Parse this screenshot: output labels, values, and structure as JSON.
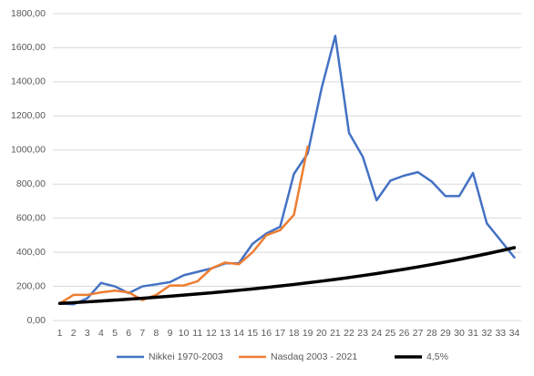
{
  "chart_data": {
    "type": "line",
    "categories": [
      "1",
      "2",
      "3",
      "4",
      "5",
      "6",
      "7",
      "8",
      "9",
      "10",
      "11",
      "12",
      "13",
      "14",
      "15",
      "16",
      "17",
      "18",
      "19",
      "20",
      "21",
      "22",
      "23",
      "24",
      "25",
      "26",
      "27",
      "28",
      "29",
      "30",
      "31",
      "32",
      "33",
      "34"
    ],
    "series": [
      {
        "name": "Nikkei 1970-2003",
        "color": "#4472c4",
        "width": 2.5,
        "values": [
          100,
          95,
          130,
          220,
          200,
          160,
          200,
          212,
          225,
          265,
          285,
          305,
          335,
          335,
          450,
          510,
          550,
          860,
          980,
          1360,
          1670,
          1100,
          960,
          705,
          820,
          850,
          870,
          815,
          730,
          730,
          865,
          570,
          470,
          370
        ]
      },
      {
        "name": "Nasdaq 2003 - 2021",
        "color": "#ed7d31",
        "width": 2.5,
        "values": [
          100,
          150,
          150,
          165,
          175,
          165,
          120,
          150,
          205,
          205,
          230,
          305,
          340,
          330,
          400,
          500,
          530,
          620,
          1020,
          null,
          null,
          null,
          null,
          null,
          null,
          null,
          null,
          null,
          null,
          null,
          null,
          null,
          null,
          null
        ]
      },
      {
        "name": "4,5%",
        "color": "#000000",
        "width": 3.5,
        "values": [
          100,
          104.5,
          109.2,
          114.1,
          119.3,
          124.6,
          130.2,
          136.1,
          142.2,
          148.6,
          155.3,
          162.3,
          169.6,
          177.2,
          185.2,
          193.5,
          202.2,
          211.3,
          220.8,
          230.7,
          241.1,
          252.0,
          263.3,
          275.2,
          287.6,
          300.5,
          314.0,
          328.1,
          342.9,
          358.3,
          374.5,
          391.3,
          408.9,
          427.3
        ]
      }
    ],
    "ylim": [
      0,
      1800
    ],
    "yticks": [
      {
        "value": 0,
        "label": "0,00"
      },
      {
        "value": 200,
        "label": "200,00"
      },
      {
        "value": 400,
        "label": "400,00"
      },
      {
        "value": 600,
        "label": "600,00"
      },
      {
        "value": 800,
        "label": "800,00"
      },
      {
        "value": 1000,
        "label": "1000,00"
      },
      {
        "value": 1200,
        "label": "1200,00"
      },
      {
        "value": 1400,
        "label": "1400,00"
      },
      {
        "value": 1600,
        "label": "1600,00"
      },
      {
        "value": 1800,
        "label": "1800,00"
      }
    ],
    "grid": true,
    "legend": "bottom"
  }
}
